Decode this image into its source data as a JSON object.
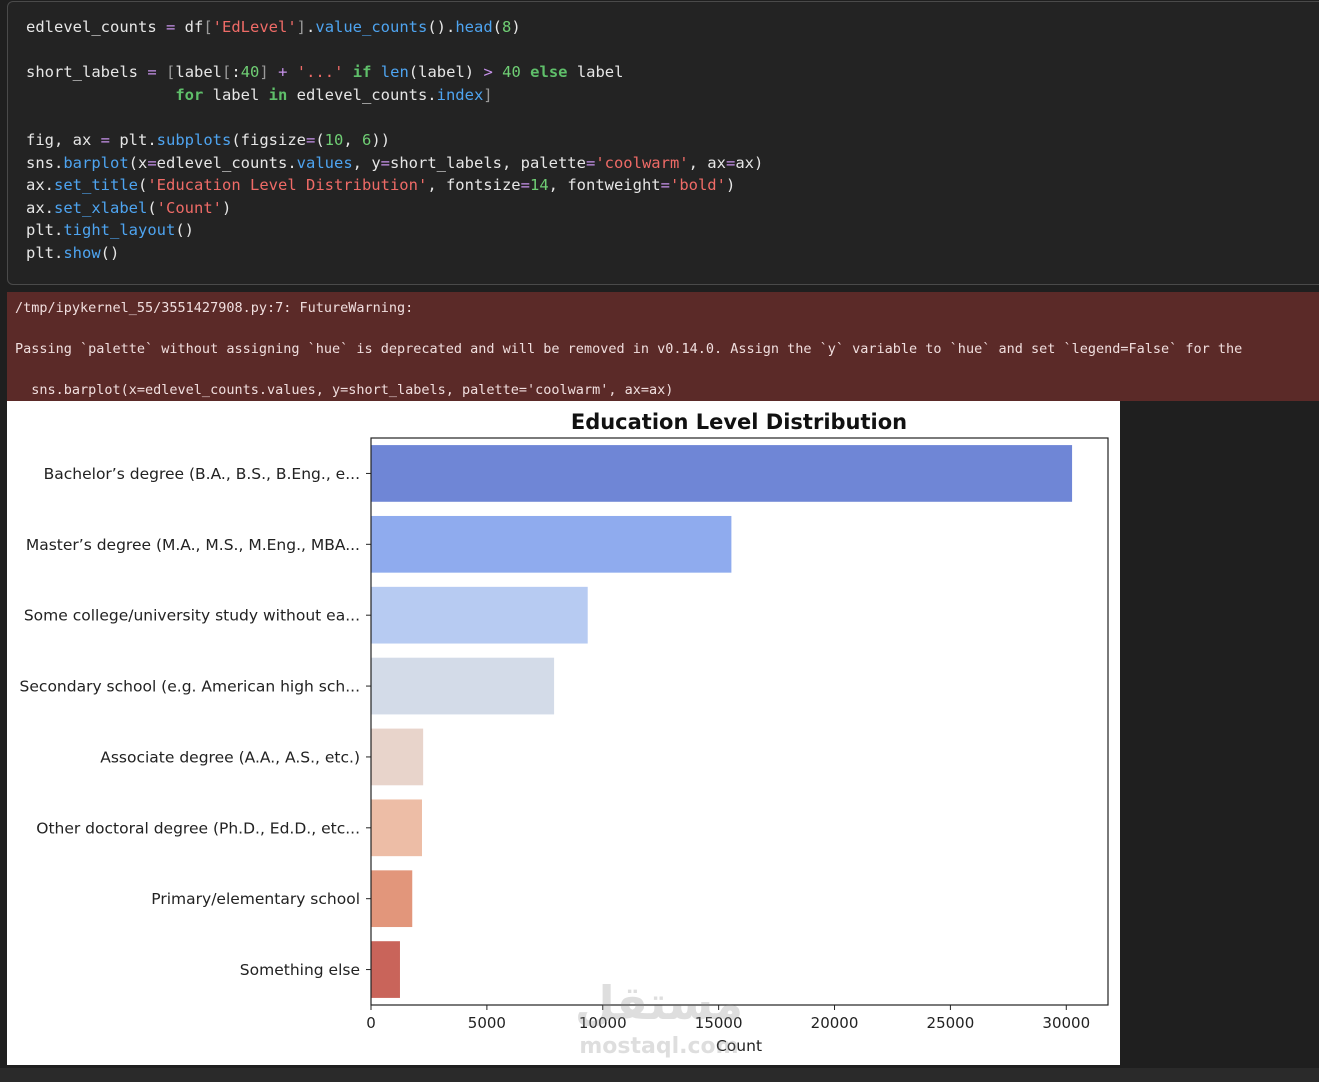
{
  "code_lines": [
    [
      [
        "t",
        "edlevel_counts "
      ],
      [
        "o",
        "="
      ],
      [
        "t",
        " df"
      ],
      [
        "b",
        "["
      ],
      [
        "s",
        "'EdLevel'"
      ],
      [
        "b",
        "]"
      ],
      [
        "t",
        "."
      ],
      [
        "f",
        "value_counts"
      ],
      [
        "t",
        "()."
      ],
      [
        "f",
        "head"
      ],
      [
        "t",
        "("
      ],
      [
        "n",
        "8"
      ],
      [
        "t",
        ")"
      ]
    ],
    [
      [
        "t",
        ""
      ]
    ],
    [
      [
        "t",
        "short_labels "
      ],
      [
        "o",
        "="
      ],
      [
        "t",
        " "
      ],
      [
        "b",
        "["
      ],
      [
        "t",
        "label"
      ],
      [
        "b",
        "["
      ],
      [
        "t",
        ":"
      ],
      [
        "n",
        "40"
      ],
      [
        "b",
        "]"
      ],
      [
        "t",
        " "
      ],
      [
        "o",
        "+"
      ],
      [
        "t",
        " "
      ],
      [
        "s",
        "'...'"
      ],
      [
        "t",
        " "
      ],
      [
        "k",
        "if"
      ],
      [
        "t",
        " "
      ],
      [
        "f",
        "len"
      ],
      [
        "t",
        "(label) "
      ],
      [
        "o",
        ">"
      ],
      [
        "t",
        " "
      ],
      [
        "n",
        "40"
      ],
      [
        "t",
        " "
      ],
      [
        "k",
        "else"
      ],
      [
        "t",
        " label"
      ]
    ],
    [
      [
        "t",
        "                "
      ],
      [
        "k",
        "for"
      ],
      [
        "t",
        " label "
      ],
      [
        "k",
        "in"
      ],
      [
        "t",
        " edlevel_counts."
      ],
      [
        "f",
        "index"
      ],
      [
        "b",
        "]"
      ]
    ],
    [
      [
        "t",
        ""
      ]
    ],
    [
      [
        "t",
        "fig, ax "
      ],
      [
        "o",
        "="
      ],
      [
        "t",
        " plt."
      ],
      [
        "f",
        "subplots"
      ],
      [
        "t",
        "(figsize"
      ],
      [
        "o",
        "="
      ],
      [
        "t",
        "("
      ],
      [
        "n",
        "10"
      ],
      [
        "t",
        ", "
      ],
      [
        "n",
        "6"
      ],
      [
        "t",
        "))"
      ]
    ],
    [
      [
        "t",
        "sns."
      ],
      [
        "f",
        "barplot"
      ],
      [
        "t",
        "(x"
      ],
      [
        "o",
        "="
      ],
      [
        "t",
        "edlevel_counts."
      ],
      [
        "f",
        "values"
      ],
      [
        "t",
        ", y"
      ],
      [
        "o",
        "="
      ],
      [
        "t",
        "short_labels, palette"
      ],
      [
        "o",
        "="
      ],
      [
        "s",
        "'coolwarm'"
      ],
      [
        "t",
        ", ax"
      ],
      [
        "o",
        "="
      ],
      [
        "t",
        "ax)"
      ]
    ],
    [
      [
        "t",
        "ax."
      ],
      [
        "f",
        "set_title"
      ],
      [
        "t",
        "("
      ],
      [
        "s",
        "'Education Level Distribution'"
      ],
      [
        "t",
        ", fontsize"
      ],
      [
        "o",
        "="
      ],
      [
        "n",
        "14"
      ],
      [
        "t",
        ", fontweight"
      ],
      [
        "o",
        "="
      ],
      [
        "s",
        "'bold'"
      ],
      [
        "t",
        ")"
      ]
    ],
    [
      [
        "t",
        "ax."
      ],
      [
        "f",
        "set_xlabel"
      ],
      [
        "t",
        "("
      ],
      [
        "s",
        "'Count'"
      ],
      [
        "t",
        ")"
      ]
    ],
    [
      [
        "t",
        "plt."
      ],
      [
        "f",
        "tight_layout"
      ],
      [
        "t",
        "()"
      ]
    ],
    [
      [
        "t",
        "plt."
      ],
      [
        "f",
        "show"
      ],
      [
        "t",
        "()"
      ]
    ]
  ],
  "warning": {
    "line1": "/tmp/ipykernel_55/3551427908.py:7: FutureWarning:",
    "line2": "Passing `palette` without assigning `hue` is deprecated and will be removed in v0.14.0. Assign the `y` variable to `hue` and set `legend=False` for the",
    "line3": "  sns.barplot(x=edlevel_counts.values, y=short_labels, palette='coolwarm', ax=ax)"
  },
  "chart_data": {
    "type": "bar",
    "orientation": "horizontal",
    "title": "Education Level Distribution",
    "xlabel": "Count",
    "ylabel": "",
    "xlim": [
      0,
      31800
    ],
    "xticks": [
      0,
      5000,
      10000,
      15000,
      20000,
      25000,
      30000
    ],
    "categories": [
      "Bachelor’s degree (B.A., B.S., B.Eng., e...",
      "Master’s degree (M.A., M.S., M.Eng., MBA...",
      "Some college/university study without ea...",
      "Secondary school (e.g. American high sch...",
      "Associate degree (A.A., A.S., etc.)",
      "Other doctoral degree (Ph.D., Ed.D., etc...",
      "Primary/elementary school",
      "Something else"
    ],
    "values": [
      30250,
      15550,
      9350,
      7900,
      2250,
      2200,
      1780,
      1250
    ],
    "colors": [
      "#6f86d6",
      "#8fabee",
      "#b7cbf2",
      "#d3dbe8",
      "#e8d4cb",
      "#edbda6",
      "#e2967b",
      "#c9645a"
    ]
  },
  "watermark": {
    "arabic": "مستقل",
    "latin": "mostaql.com"
  }
}
